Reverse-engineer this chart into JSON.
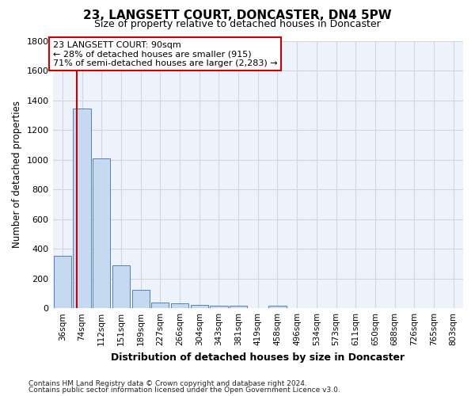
{
  "title": "23, LANGSETT COURT, DONCASTER, DN4 5PW",
  "subtitle": "Size of property relative to detached houses in Doncaster",
  "xlabel": "Distribution of detached houses by size in Doncaster",
  "ylabel": "Number of detached properties",
  "bar_values": [
    355,
    1345,
    1010,
    290,
    125,
    40,
    33,
    22,
    18,
    18,
    0,
    18,
    0,
    0,
    0,
    0,
    0,
    0,
    0,
    0,
    0
  ],
  "bar_labels": [
    "36sqm",
    "74sqm",
    "112sqm",
    "151sqm",
    "189sqm",
    "227sqm",
    "266sqm",
    "304sqm",
    "343sqm",
    "381sqm",
    "419sqm",
    "458sqm",
    "496sqm",
    "534sqm",
    "573sqm",
    "611sqm",
    "650sqm",
    "688sqm",
    "726sqm",
    "765sqm",
    "803sqm"
  ],
  "bar_color": "#c5d9f1",
  "bar_edge_color": "#4f81bd",
  "ylim_max": 1800,
  "yticks": [
    0,
    200,
    400,
    600,
    800,
    1000,
    1200,
    1400,
    1600,
    1800
  ],
  "red_line_x": 0.72,
  "red_line_color": "#cc0000",
  "annotation_line1": "23 LANGSETT COURT: 90sqm",
  "annotation_line2": "← 28% of detached houses are smaller (915)",
  "annotation_line3": "71% of semi-detached houses are larger (2,283) →",
  "footnote1": "Contains HM Land Registry data © Crown copyright and database right 2024.",
  "footnote2": "Contains public sector information licensed under the Open Government Licence v3.0.",
  "plot_bgcolor": "#eef3fb",
  "grid_color": "#d0d5e0"
}
